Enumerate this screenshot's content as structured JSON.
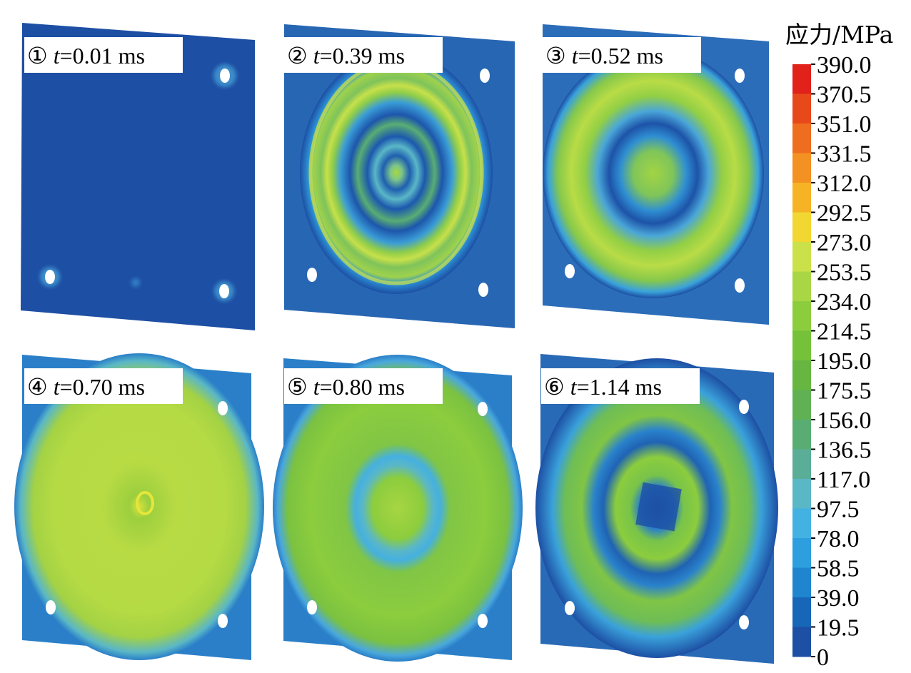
{
  "legend": {
    "title": "应力/MPa",
    "ticks": [
      "390.0",
      "370.5",
      "351.0",
      "331.5",
      "312.0",
      "292.5",
      "273.0",
      "253.5",
      "234.0",
      "214.5",
      "195.0",
      "175.5",
      "156.0",
      "136.5",
      "117.0",
      "97.5",
      "78.0",
      "58.5",
      "39.0",
      "19.5",
      "0"
    ],
    "colors": [
      "#e0221a",
      "#e8491b",
      "#ef6d1e",
      "#f39123",
      "#f6b326",
      "#f2d732",
      "#cbe14a",
      "#a9d644",
      "#8ccd3e",
      "#75c23a",
      "#66b641",
      "#5fb154",
      "#59ad73",
      "#5aae97",
      "#5ab7c6",
      "#43b2e3",
      "#2d9fde",
      "#1f85cf",
      "#1766b8",
      "#1d4fa4"
    ]
  },
  "panels": [
    {
      "num": "①",
      "t_label": "t",
      "value": "=0.01 ms",
      "time_ms": 0.01
    },
    {
      "num": "②",
      "t_label": "t",
      "value": "=0.39 ms",
      "time_ms": 0.39
    },
    {
      "num": "③",
      "t_label": "t",
      "value": "=0.52 ms",
      "time_ms": 0.52
    },
    {
      "num": "④",
      "t_label": "t",
      "value": "=0.70 ms",
      "time_ms": 0.7
    },
    {
      "num": "⑤",
      "t_label": "t",
      "value": "=0.80 ms",
      "time_ms": 0.8
    },
    {
      "num": "⑥",
      "t_label": "t",
      "value": "=1.14 ms",
      "time_ms": 1.14
    }
  ]
}
